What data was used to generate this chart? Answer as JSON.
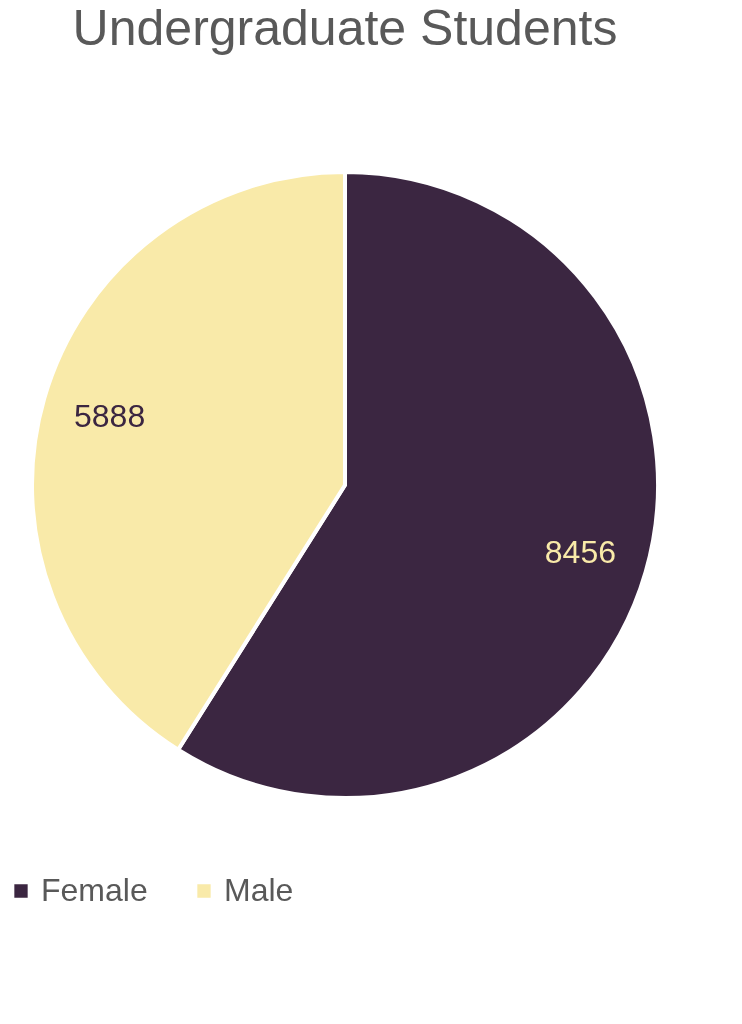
{
  "chart_data": {
    "type": "pie",
    "title": "Undergraduate Students",
    "categories": [
      "Female",
      "Male"
    ],
    "values": [
      8456,
      5888
    ],
    "colors": [
      "#3b2641",
      "#f9eaa9"
    ],
    "data_labels": true,
    "legend": "bottom"
  }
}
